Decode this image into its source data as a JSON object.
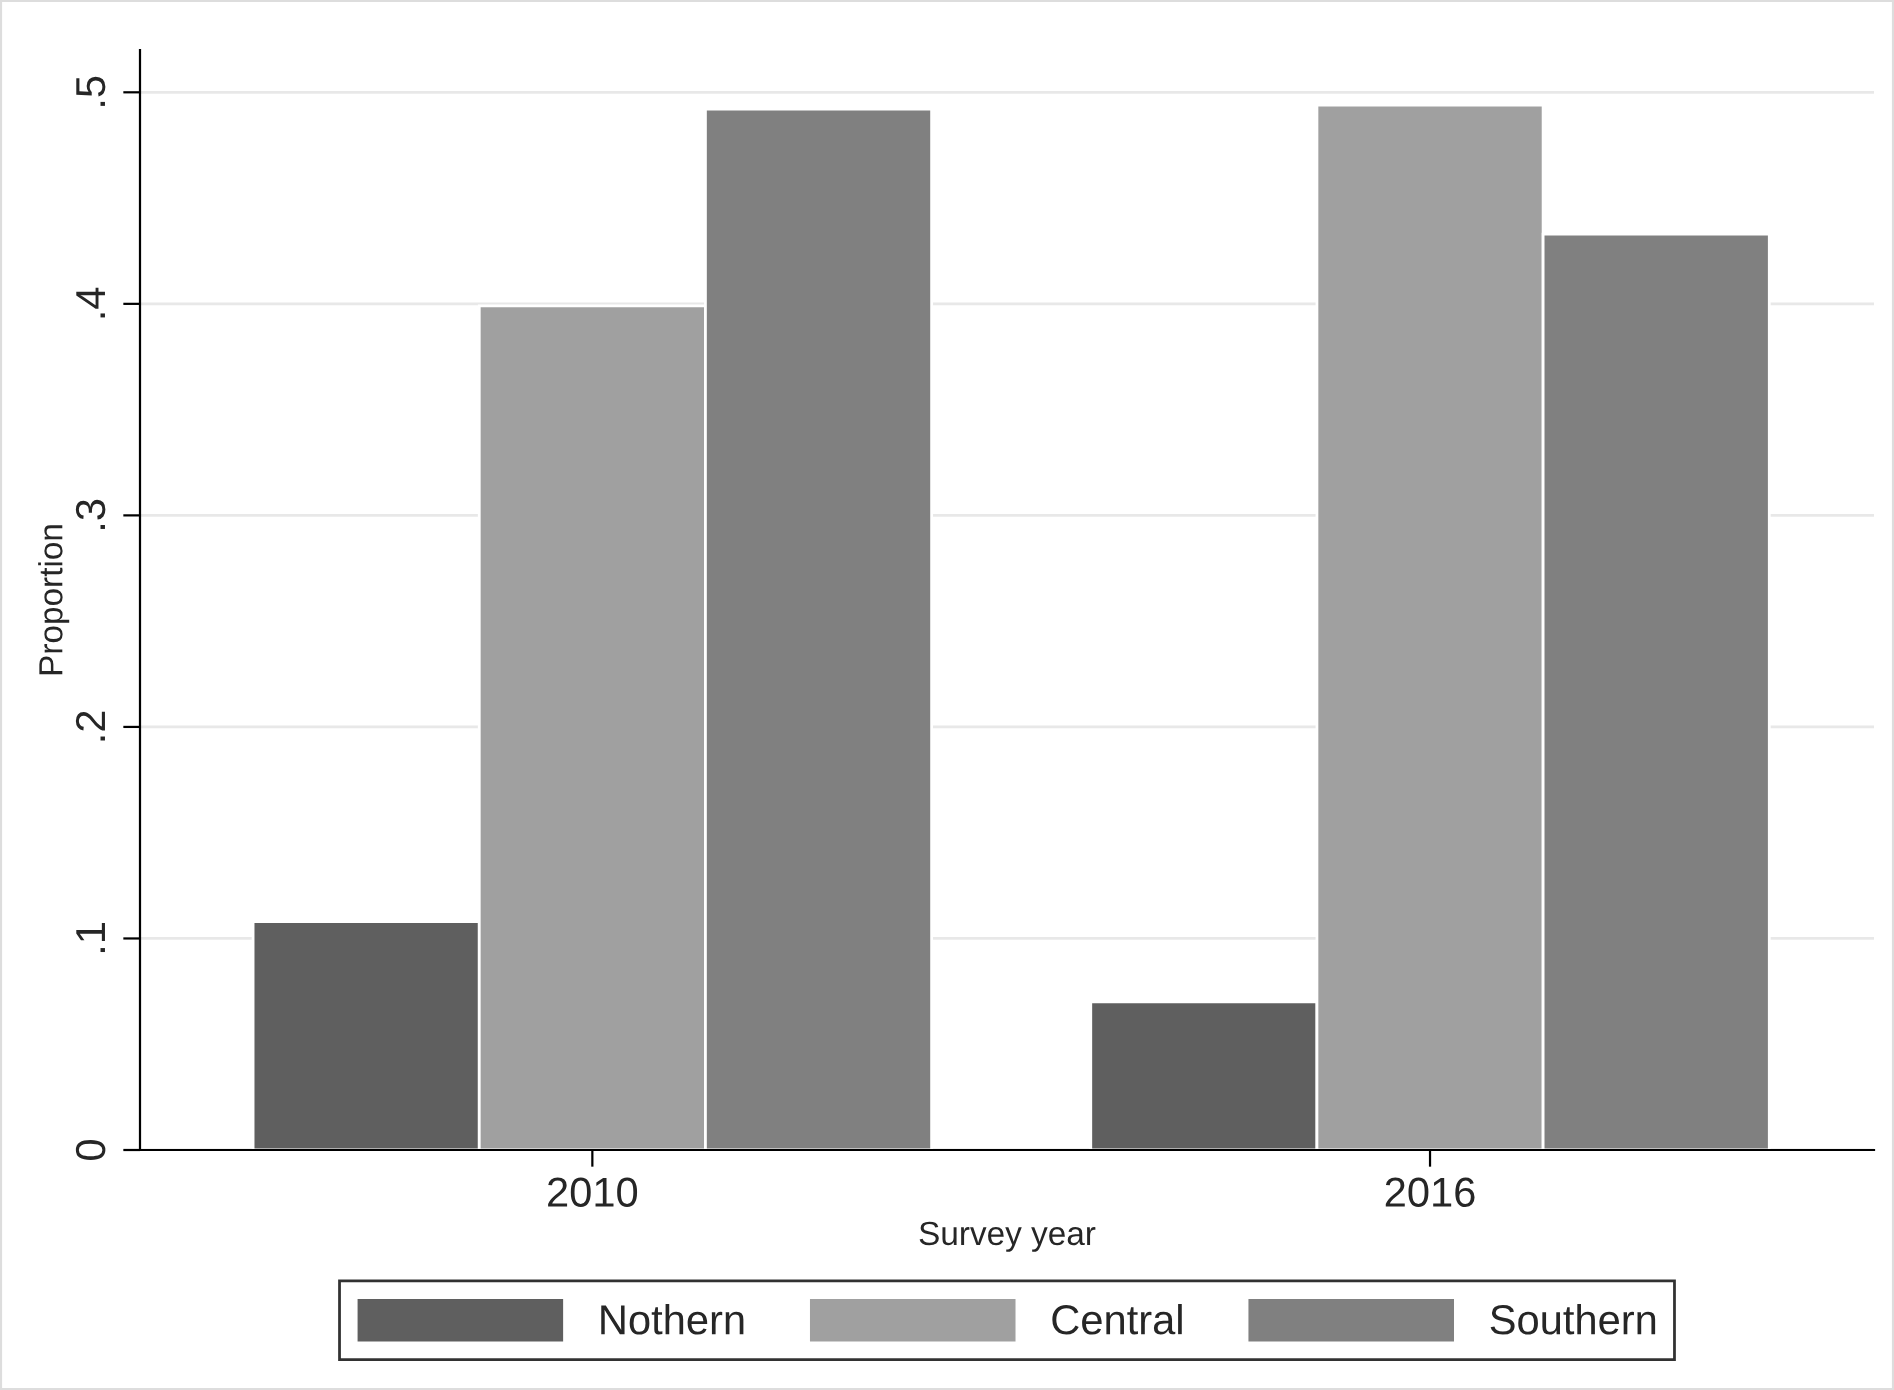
{
  "chart_data": {
    "type": "bar",
    "xlabel": "Survey year",
    "ylabel": "Proportion",
    "categories": [
      "2010",
      "2016"
    ],
    "series": [
      {
        "name": "Nothern",
        "color": "#5f5f5f",
        "values": [
          0.108,
          0.07
        ]
      },
      {
        "name": "Central",
        "color": "#a0a0a0",
        "values": [
          0.399,
          0.494
        ]
      },
      {
        "name": "Southern",
        "color": "#808080",
        "values": [
          0.492,
          0.433
        ]
      }
    ],
    "ylim": [
      0,
      0.52
    ],
    "yticks": [
      0,
      {
        "value": 0.1,
        "label": ".1"
      },
      {
        "value": 0.2,
        "label": ".2"
      },
      {
        "value": 0.3,
        "label": ".3"
      },
      {
        "value": 0.4,
        "label": ".4"
      },
      {
        "value": 0.5,
        "label": ".5"
      }
    ],
    "grid": "y",
    "legend": "bottom"
  }
}
